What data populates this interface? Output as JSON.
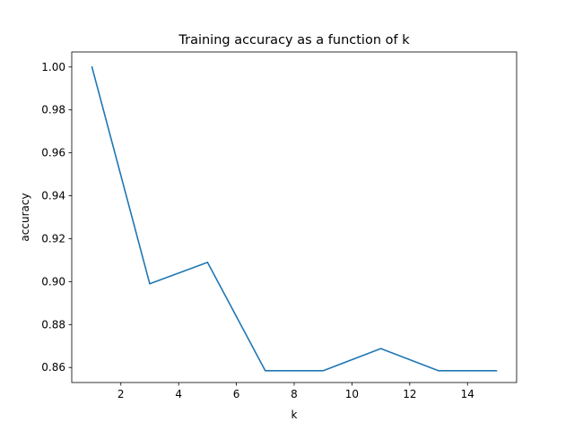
{
  "chart_data": {
    "type": "line",
    "title": "Training accuracy as a function of k",
    "xlabel": "k",
    "ylabel": "accuracy",
    "xlim": [
      0.3,
      15.7
    ],
    "ylim": [
      0.853,
      1.007
    ],
    "xticks": [
      2,
      4,
      6,
      8,
      10,
      12,
      14
    ],
    "xtick_labels": [
      "2",
      "4",
      "6",
      "8",
      "10",
      "12",
      "14"
    ],
    "yticks": [
      0.86,
      0.88,
      0.9,
      0.92,
      0.94,
      0.96,
      0.98,
      1.0
    ],
    "ytick_labels": [
      "0.86",
      "0.88",
      "0.90",
      "0.92",
      "0.94",
      "0.96",
      "0.98",
      "1.00"
    ],
    "grid": false,
    "series": [
      {
        "color": "#1f77b4",
        "x": [
          1,
          3,
          5,
          7,
          9,
          11,
          13,
          15
        ],
        "y": [
          1.0,
          0.899,
          0.909,
          0.8585,
          0.8585,
          0.8688,
          0.8585,
          0.8585
        ]
      }
    ]
  }
}
